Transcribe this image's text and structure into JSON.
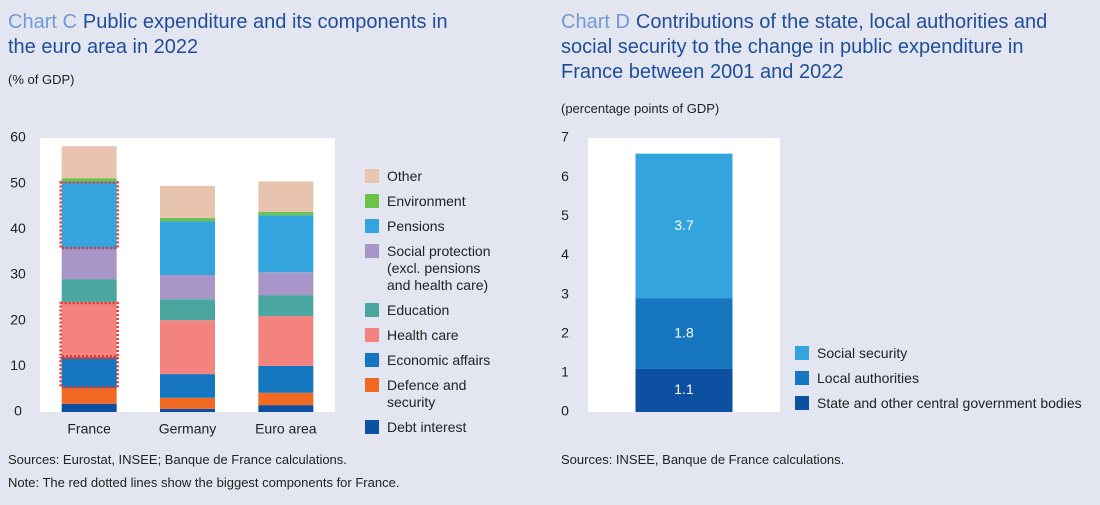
{
  "chart_data": [
    {
      "type": "stacked_bar",
      "label": "Chart C",
      "title": "Public expenditure and its components in the euro area in 2022",
      "subtitle": "(% of GDP)",
      "categories": [
        "France",
        "Germany",
        "Euro area"
      ],
      "series": [
        {
          "name": "Debt interest",
          "color": "#0d4fa0",
          "values": [
            1.8,
            0.7,
            1.5
          ]
        },
        {
          "name": "Defence and security",
          "color": "#f26a21",
          "values": [
            3.4,
            2.4,
            2.7
          ]
        },
        {
          "name": "Economic affairs",
          "color": "#1677c0",
          "values": [
            6.8,
            5.2,
            5.9
          ]
        },
        {
          "name": "Health care",
          "color": "#f4827e",
          "values": [
            12.1,
            11.8,
            10.9
          ]
        },
        {
          "name": "Education",
          "color": "#4aa69f",
          "values": [
            5.0,
            4.6,
            4.6
          ]
        },
        {
          "name": "Social protection (excl. pensions and health care)",
          "color": "#a896c8",
          "values": [
            6.6,
            5.3,
            5.0
          ]
        },
        {
          "name": "Pensions",
          "color": "#33a4dd",
          "values": [
            14.8,
            11.8,
            12.5
          ]
        },
        {
          "name": "Environment",
          "color": "#6cc24a",
          "values": [
            0.7,
            0.7,
            0.7
          ]
        },
        {
          "name": "Other",
          "color": "#e8c4ae",
          "values": [
            7.0,
            7.0,
            6.7
          ]
        }
      ],
      "ylim": [
        0,
        60
      ],
      "yticks": [
        0,
        10,
        20,
        30,
        40,
        50,
        60
      ],
      "grid": false,
      "highlight": {
        "category": "France",
        "series": [
          "Economic affairs",
          "Health care",
          "Pensions"
        ],
        "color": "#e8352b"
      },
      "sources": "Sources: Eurostat, INSEE; Banque de France calculations.",
      "note": "Note: The red dotted lines show the biggest components for France."
    },
    {
      "type": "stacked_bar",
      "label": "Chart D",
      "title": "Contributions of the state, local authorities and social security to the change in public expenditure in France between 2001 and 2022",
      "subtitle": "(percentage points of GDP)",
      "categories": [
        null
      ],
      "series": [
        {
          "name": "State and other central government bodies",
          "color": "#0d4fa0",
          "values": [
            1.1
          ]
        },
        {
          "name": "Local authorities",
          "color": "#1677c0",
          "values": [
            1.8
          ]
        },
        {
          "name": "Social security",
          "color": "#33a4dd",
          "values": [
            3.7
          ]
        }
      ],
      "ylim": [
        0,
        7
      ],
      "yticks": [
        0,
        1,
        2,
        3,
        4,
        5,
        6,
        7
      ],
      "grid": false,
      "data_labels": true,
      "sources": "Sources: INSEE, Banque de France calculations."
    }
  ]
}
